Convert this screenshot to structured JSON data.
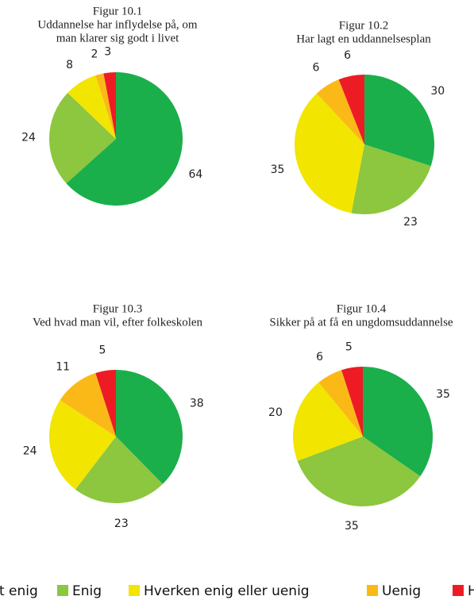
{
  "chart_data": [
    {
      "type": "pie",
      "label": "Figur 10.1",
      "title": [
        "Uddannelse har inflydelse på, om",
        "man klarer sig godt i livet"
      ],
      "categories": [
        "Helt enig",
        "Enig",
        "Hverken enig eller uenig",
        "Uenig",
        "Helt uenig"
      ],
      "values": [
        64,
        24,
        8,
        2,
        3
      ],
      "colors": [
        "#1aaf4b",
        "#8dc63f",
        "#f2e500",
        "#fbb917",
        "#ed1c24"
      ]
    },
    {
      "type": "pie",
      "label": "Figur 10.2",
      "title": [
        "Har lagt en uddannelsesplan"
      ],
      "categories": [
        "Helt enig",
        "Enig",
        "Hverken enig eller uenig",
        "Uenig",
        "Helt uenig"
      ],
      "values": [
        30,
        23,
        35,
        6,
        6
      ],
      "colors": [
        "#1aaf4b",
        "#8dc63f",
        "#f2e500",
        "#fbb917",
        "#ed1c24"
      ]
    },
    {
      "type": "pie",
      "label": "Figur 10.3",
      "title": [
        "Ved hvad man vil, efter folkeskolen"
      ],
      "categories": [
        "Helt enig",
        "Enig",
        "Hverken enig eller uenig",
        "Uenig",
        "Helt uenig"
      ],
      "values": [
        38,
        23,
        24,
        11,
        5
      ],
      "colors": [
        "#1aaf4b",
        "#8dc63f",
        "#f2e500",
        "#fbb917",
        "#ed1c24"
      ]
    },
    {
      "type": "pie",
      "label": "Figur 10.4",
      "title": [
        "Sikker på at få en ungdomsuddannelse"
      ],
      "categories": [
        "Helt enig",
        "Enig",
        "Hverken enig eller uenig",
        "Uenig",
        "Helt uenig"
      ],
      "values": [
        35,
        35,
        20,
        6,
        5
      ],
      "colors": [
        "#1aaf4b",
        "#8dc63f",
        "#f2e500",
        "#fbb917",
        "#ed1c24"
      ]
    }
  ]
}
